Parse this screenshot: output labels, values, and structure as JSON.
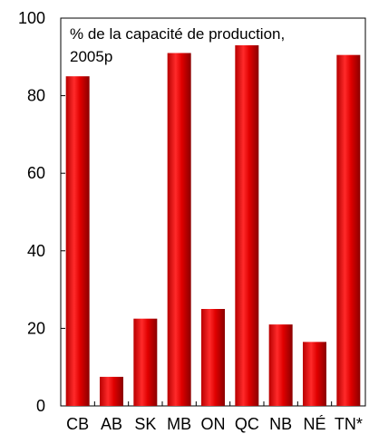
{
  "chart_data": {
    "type": "bar",
    "annotation_lines": [
      "% de la capacité de production,",
      "2005p"
    ],
    "categories": [
      "CB",
      "AB",
      "SK",
      "MB",
      "ON",
      "QC",
      "NB",
      "NÉ",
      "TN*"
    ],
    "values": [
      85,
      7.5,
      22.5,
      91,
      25,
      93,
      21,
      16.5,
      90.5
    ],
    "ylim": [
      0,
      100
    ],
    "yticks": [
      0,
      20,
      40,
      60,
      80,
      100
    ],
    "bar_color": "#e00000",
    "grid": false
  }
}
